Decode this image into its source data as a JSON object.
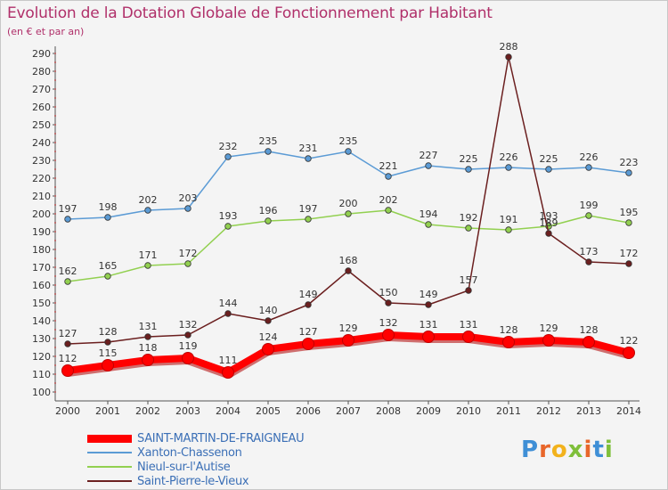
{
  "title": "Evolution de la Dotation Globale de Fonctionnement par Habitant",
  "subtitle": "(en € et par an)",
  "logo": {
    "letters": [
      {
        "ch": "P",
        "color": "#3f8fd6"
      },
      {
        "ch": "r",
        "color": "#e8662a"
      },
      {
        "ch": "o",
        "color": "#f2b21c"
      },
      {
        "ch": "x",
        "color": "#7fbf3a"
      },
      {
        "ch": "i",
        "color": "#e8662a"
      },
      {
        "ch": "t",
        "color": "#3f8fd6"
      },
      {
        "ch": "i",
        "color": "#7fbf3a"
      }
    ]
  },
  "chart_data": {
    "type": "line",
    "title": "Evolution de la Dotation Globale de Fonctionnement par Habitant",
    "subtitle": "(en € et par an)",
    "x": [
      "2000",
      "2001",
      "2002",
      "2003",
      "2004",
      "2005",
      "2006",
      "2007",
      "2008",
      "2009",
      "2010",
      "2011",
      "2012",
      "2013",
      "2014"
    ],
    "ylim": [
      100,
      290
    ],
    "yticks": [
      100,
      110,
      120,
      130,
      140,
      150,
      160,
      170,
      180,
      190,
      200,
      210,
      220,
      230,
      240,
      250,
      260,
      270,
      280,
      290
    ],
    "grid": false,
    "legend_position": "bottom-left",
    "series": [
      {
        "name": "SAINT-MARTIN-DE-FRAIGNEAU",
        "color": "#ff0000",
        "thick": true,
        "values": [
          112,
          115,
          118,
          119,
          111,
          124,
          127,
          129,
          132,
          131,
          131,
          128,
          129,
          128,
          122
        ]
      },
      {
        "name": "Xanton-Chassenon",
        "color": "#5b9bd5",
        "thick": false,
        "values": [
          197,
          198,
          202,
          203,
          232,
          235,
          231,
          235,
          221,
          227,
          225,
          226,
          225,
          226,
          223
        ]
      },
      {
        "name": "Nieul-sur-l'Autise",
        "color": "#92d050",
        "thick": false,
        "values": [
          162,
          165,
          171,
          172,
          193,
          196,
          197,
          200,
          202,
          194,
          192,
          191,
          193,
          199,
          195
        ]
      },
      {
        "name": "Saint-Pierre-le-Vieux",
        "color": "#6b1f1f",
        "thick": false,
        "values": [
          127,
          128,
          131,
          132,
          144,
          140,
          149,
          168,
          150,
          149,
          157,
          288,
          189,
          173,
          172
        ]
      }
    ]
  }
}
